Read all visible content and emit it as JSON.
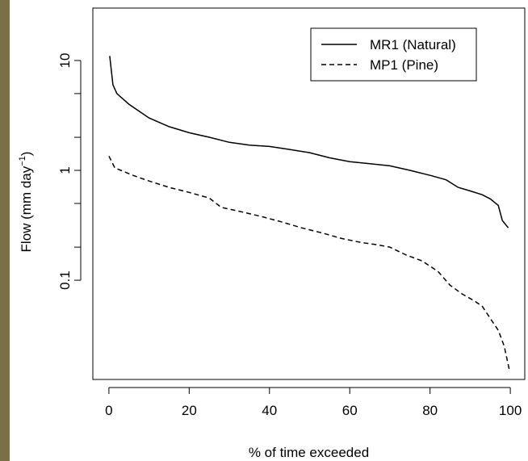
{
  "chart_data": {
    "type": "line",
    "xlabel": "% of time exceeded",
    "ylabel": {
      "text": "Flow (mm day",
      "superscript": "−1",
      "suffix": ")"
    },
    "log_y": true,
    "xlim": [
      -4,
      103.6
    ],
    "ylim": [
      0.0125,
      30
    ],
    "xticks": [
      0,
      20,
      40,
      60,
      80,
      100
    ],
    "yticks": [
      0.1,
      1,
      10
    ],
    "yminor_ticks": [
      0.2,
      0.5,
      2,
      5
    ],
    "legend": "top-right",
    "series": [
      {
        "name": "MR1 (Natural)",
        "color": "#000000",
        "dash": false,
        "x": [
          0.2,
          1,
          2,
          5,
          10,
          15,
          20,
          25,
          30,
          35,
          40,
          45,
          50,
          55,
          60,
          65,
          70,
          75,
          80,
          84,
          87,
          90,
          93,
          95,
          97,
          98,
          99.5
        ],
        "values": [
          11,
          6,
          5,
          4,
          3,
          2.5,
          2.2,
          2,
          1.8,
          1.7,
          1.65,
          1.55,
          1.45,
          1.3,
          1.2,
          1.15,
          1.1,
          1,
          0.9,
          0.82,
          0.7,
          0.65,
          0.6,
          0.55,
          0.48,
          0.35,
          0.3
        ]
      },
      {
        "name": "MP1 (Pine)",
        "color": "#000000",
        "dash": true,
        "x": [
          0,
          1.5,
          3,
          6,
          10,
          15,
          20,
          25,
          28,
          33,
          38,
          43,
          48,
          53,
          58,
          63,
          67,
          70,
          74,
          78,
          82,
          85,
          88,
          91,
          93,
          95,
          97,
          98.5,
          99.8
        ],
        "values": [
          1.35,
          1.05,
          1,
          0.9,
          0.8,
          0.7,
          0.63,
          0.56,
          0.46,
          0.42,
          0.38,
          0.34,
          0.3,
          0.27,
          0.24,
          0.22,
          0.21,
          0.2,
          0.17,
          0.15,
          0.12,
          0.09,
          0.075,
          0.065,
          0.058,
          0.045,
          0.035,
          0.025,
          0.015
        ]
      }
    ]
  }
}
